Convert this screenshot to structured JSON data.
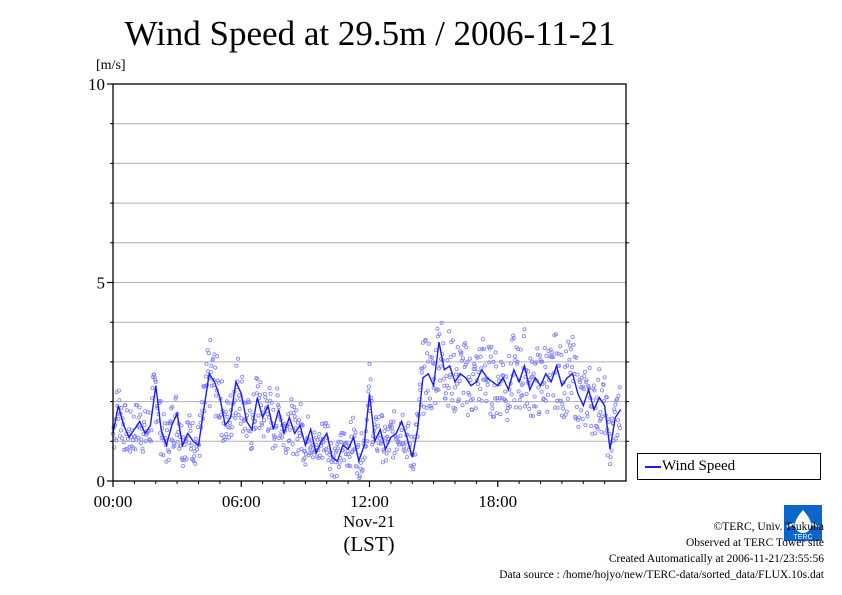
{
  "title": "Wind Speed at 29.5m / 2006-11-21",
  "footer": {
    "copyright": "©TERC, Univ. Tsukuba",
    "observed": "Observed at TERC Tower site",
    "created": "Created Automatically at 2006-11-21/23:55:56",
    "source": "Data source : /home/hojyo/new/TERC-data/sorted_data/FLUX.10s.dat"
  },
  "logo_text": "TERC",
  "colors": {
    "series": "#1a1aff",
    "points": "#8080ff",
    "grid": "#b0b0b0"
  },
  "chart_data": {
    "type": "line",
    "title": "Wind Speed at 29.5m / 2006-11-21",
    "ylabel": "[m/s]",
    "xlabel": "(LST)",
    "date_label": "Nov-21",
    "ylim": [
      0,
      10
    ],
    "y_ticks": [
      "0",
      "5",
      "10"
    ],
    "y_minor_step": 1,
    "x_ticks": [
      "00:00",
      "06:00",
      "12:00",
      "18:00"
    ],
    "xlim_hours": [
      0,
      24
    ],
    "grid": true,
    "legend": "right",
    "series": [
      {
        "name": "Wind Speed",
        "x": [
          0,
          0.25,
          0.5,
          0.75,
          1,
          1.25,
          1.5,
          1.75,
          2,
          2.25,
          2.5,
          2.75,
          3,
          3.25,
          3.5,
          3.75,
          4,
          4.25,
          4.5,
          4.75,
          5,
          5.25,
          5.5,
          5.75,
          6,
          6.25,
          6.5,
          6.75,
          7,
          7.25,
          7.5,
          7.75,
          8,
          8.25,
          8.5,
          8.75,
          9,
          9.25,
          9.5,
          9.75,
          10,
          10.25,
          10.5,
          10.75,
          11,
          11.25,
          11.5,
          11.75,
          12,
          12.25,
          12.5,
          12.75,
          13,
          13.25,
          13.5,
          13.75,
          14,
          14.25,
          14.5,
          14.75,
          15,
          15.25,
          15.5,
          15.75,
          16,
          16.25,
          16.5,
          16.75,
          17,
          17.25,
          17.5,
          17.75,
          18,
          18.25,
          18.5,
          18.75,
          19,
          19.25,
          19.5,
          19.75,
          20,
          20.25,
          20.5,
          20.75,
          21,
          21.25,
          21.5,
          21.75,
          22,
          22.25,
          22.5,
          22.75,
          23,
          23.25,
          23.5,
          23.75
        ],
        "values": [
          1.2,
          1.9,
          1.4,
          1.1,
          1.3,
          1.5,
          1.2,
          1.4,
          2.4,
          1.3,
          0.9,
          1.4,
          1.7,
          0.9,
          1.2,
          1.0,
          0.9,
          1.8,
          2.7,
          2.5,
          2.1,
          1.4,
          1.6,
          2.5,
          2.2,
          1.5,
          1.3,
          2.1,
          1.6,
          1.9,
          1.3,
          1.8,
          1.2,
          1.6,
          1.2,
          1.4,
          0.9,
          1.3,
          0.7,
          1.0,
          1.2,
          0.6,
          0.5,
          0.9,
          0.8,
          1.1,
          0.5,
          0.9,
          2.2,
          1.0,
          1.3,
          0.8,
          1.1,
          1.2,
          1.5,
          1.1,
          0.6,
          1.3,
          2.6,
          2.7,
          2.4,
          3.5,
          2.8,
          2.9,
          2.5,
          2.7,
          2.6,
          2.4,
          2.5,
          2.8,
          2.6,
          2.5,
          2.4,
          2.6,
          2.3,
          2.8,
          2.5,
          2.9,
          2.3,
          2.6,
          2.4,
          2.7,
          2.5,
          2.9,
          2.4,
          2.6,
          2.7,
          2.2,
          1.9,
          2.3,
          1.8,
          2.1,
          1.9,
          0.8,
          1.6,
          1.8
        ]
      }
    ]
  }
}
